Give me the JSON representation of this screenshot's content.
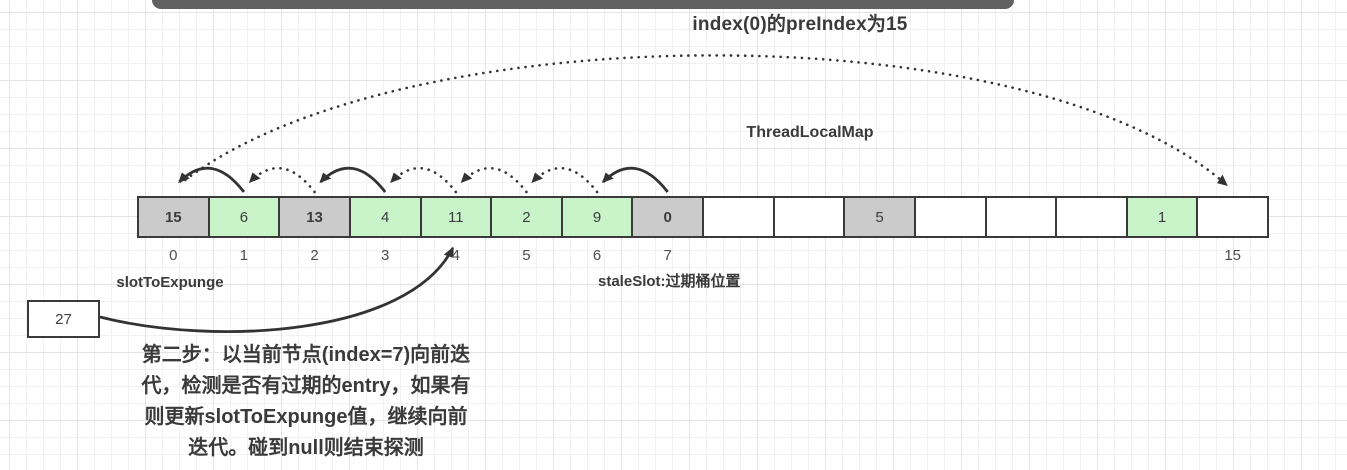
{
  "title": "index(0)的preIndex为15",
  "map_label": "ThreadLocalMap",
  "labels": {
    "slot_to_expunge": "slotToExpunge",
    "stale_slot": "staleSlot:过期桶位置",
    "pointer_box_value": "27"
  },
  "note": "第二步：以当前节点(index=7)向前迭\n代，检测是否有过期的entry，如果有\n则更新slotToExpunge值，继续向前\n迭代。碰到null则结束探测",
  "array": {
    "cells": [
      {
        "index": "0",
        "value": "15",
        "type": "stale",
        "bold": true,
        "show_index": true
      },
      {
        "index": "1",
        "value": "6",
        "type": "live",
        "bold": false,
        "show_index": true
      },
      {
        "index": "2",
        "value": "13",
        "type": "stale",
        "bold": true,
        "show_index": true
      },
      {
        "index": "3",
        "value": "4",
        "type": "live",
        "bold": false,
        "show_index": true
      },
      {
        "index": "4",
        "value": "11",
        "type": "live",
        "bold": false,
        "show_index": true
      },
      {
        "index": "5",
        "value": "2",
        "type": "live",
        "bold": false,
        "show_index": true
      },
      {
        "index": "6",
        "value": "9",
        "type": "live",
        "bold": false,
        "show_index": true
      },
      {
        "index": "7",
        "value": "0",
        "type": "stale",
        "bold": true,
        "show_index": true
      },
      {
        "index": "8",
        "value": "",
        "type": "empty",
        "bold": false,
        "show_index": false
      },
      {
        "index": "9",
        "value": "",
        "type": "empty",
        "bold": false,
        "show_index": false
      },
      {
        "index": "10",
        "value": "5",
        "type": "stale",
        "bold": false,
        "show_index": false
      },
      {
        "index": "11",
        "value": "",
        "type": "empty",
        "bold": false,
        "show_index": false
      },
      {
        "index": "12",
        "value": "",
        "type": "empty",
        "bold": false,
        "show_index": false
      },
      {
        "index": "13",
        "value": "",
        "type": "empty",
        "bold": false,
        "show_index": false
      },
      {
        "index": "14",
        "value": "1",
        "type": "live",
        "bold": false,
        "show_index": false
      },
      {
        "index": "15",
        "value": "",
        "type": "empty",
        "bold": false,
        "show_index": true
      }
    ]
  },
  "arrows": {
    "arcs": [
      {
        "from": 1,
        "to": 0,
        "style": "solid"
      },
      {
        "from": 2,
        "to": 1,
        "style": "dotted"
      },
      {
        "from": 3,
        "to": 2,
        "style": "solid"
      },
      {
        "from": 4,
        "to": 3,
        "style": "dotted"
      },
      {
        "from": 5,
        "to": 4,
        "style": "dotted"
      },
      {
        "from": 6,
        "to": 5,
        "style": "dotted"
      },
      {
        "from": 7,
        "to": 6,
        "style": "solid"
      }
    ],
    "long_arc": {
      "from": 0,
      "to": 15,
      "style": "dotted"
    },
    "pointer_arrow": {
      "from": "pointer_box",
      "to_cell": 4,
      "style": "solid"
    }
  },
  "colors": {
    "stale": "#cbcbcb",
    "live": "#c9f3c9",
    "empty": "#ffffff",
    "stroke": "#333333",
    "top_bar": "#606060"
  }
}
